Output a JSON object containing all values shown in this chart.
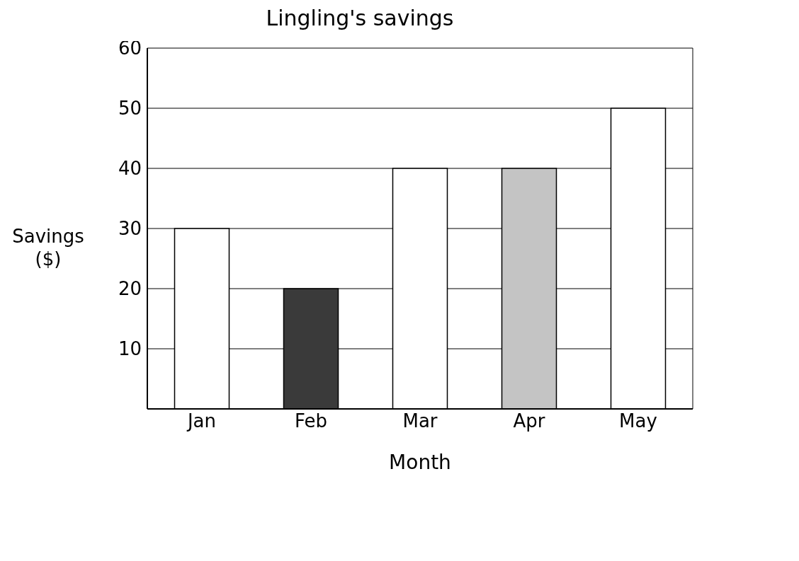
{
  "chart_data": {
    "type": "bar",
    "title": "Lingling's savings",
    "xlabel": "Month",
    "ylabel": "Savings ($)",
    "categories": [
      "Jan",
      "Feb",
      "Mar",
      "Apr",
      "May"
    ],
    "values": [
      30,
      20,
      40,
      40,
      50
    ],
    "colors": [
      "#ffffff",
      "#3a3a3a",
      "#ffffff",
      "#c4c4c4",
      "#ffffff"
    ],
    "ylim": [
      0,
      60
    ],
    "yticks": [
      10,
      20,
      30,
      40,
      50,
      60
    ],
    "grid": "y"
  }
}
